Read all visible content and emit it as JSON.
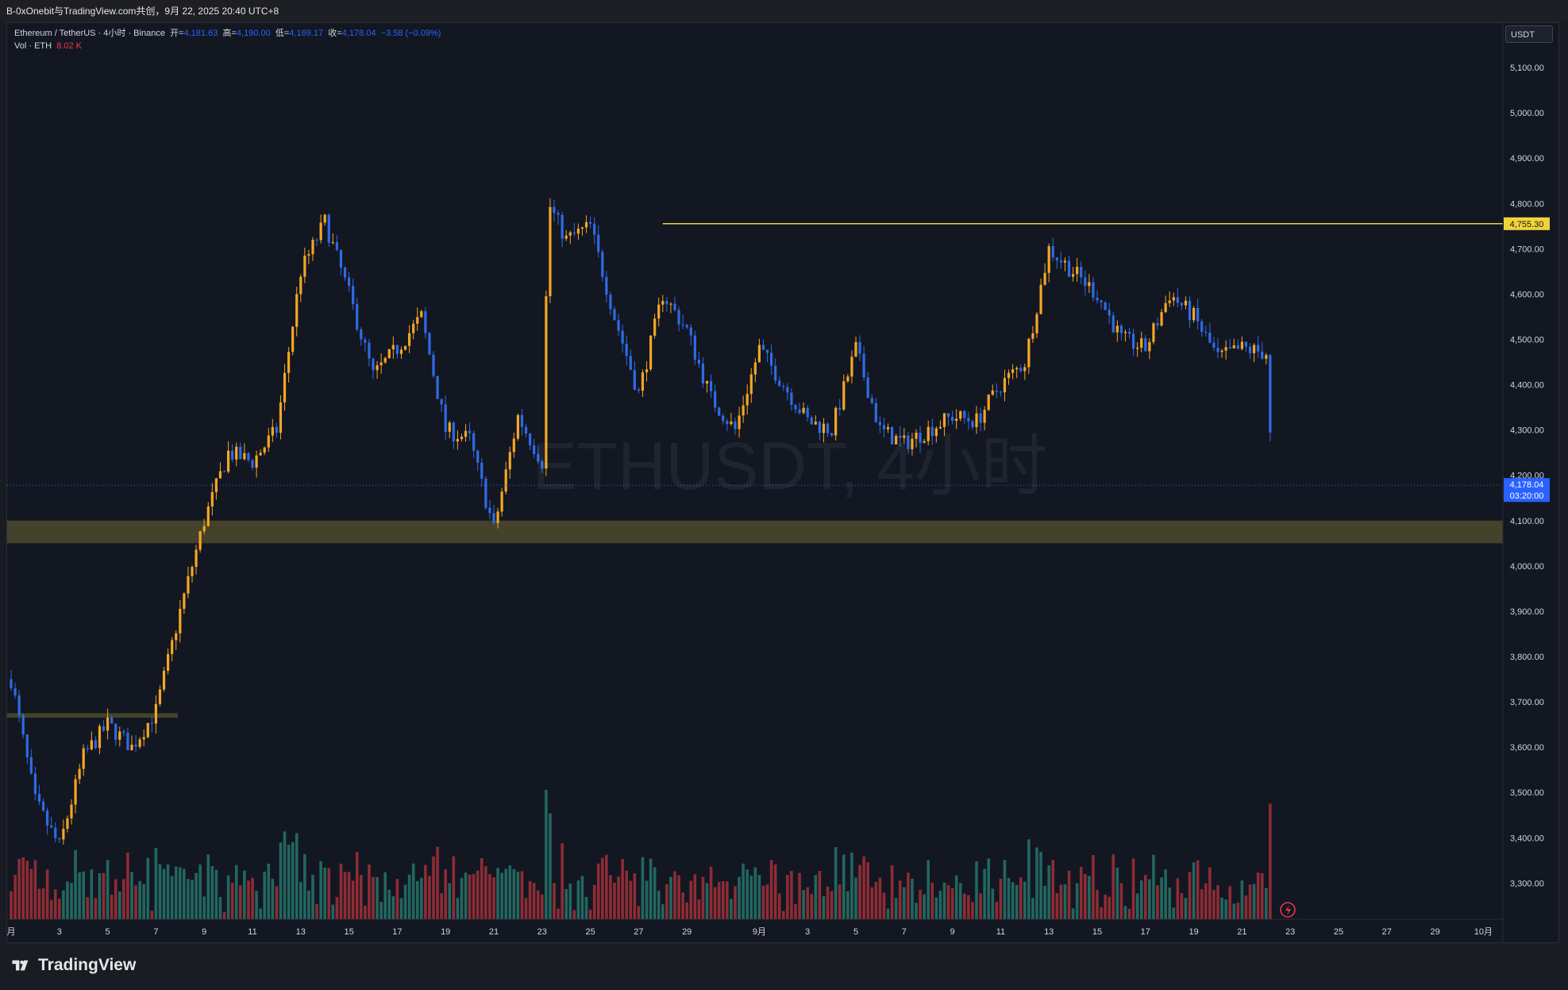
{
  "header": {
    "title": "B-0xOnebit与TradingView.com共创，9月 22, 2025 20:40 UTC+8"
  },
  "legend": {
    "symbol": "Ethereum / TetherUS · 4小时 · Binance",
    "open_label": "开=",
    "open_value": "4,181.63",
    "high_label": "高=",
    "high_value": "4,190.00",
    "low_label": "低=",
    "low_value": "4,169.17",
    "close_label": "收=",
    "close_value": "4,178.04",
    "change": "−3.58 (−0.09%)",
    "vol_label": "Vol · ETH",
    "vol_value": "8.02 K"
  },
  "currency_button": "USDT",
  "watermark": "ETHUSDT, 4小时",
  "brand": "TradingView",
  "colors": {
    "bg": "#131722",
    "up": "#f5a623",
    "down": "#2e6be6",
    "vol_up": "#22675f",
    "vol_down": "#8e2c35",
    "resistance": "#f0d43a",
    "zone": "#4d4a2c",
    "current_price": "#2962ff"
  },
  "chart_data": {
    "type": "candlestick",
    "title": "Ethereum / TetherUS · 4小时 · Binance",
    "interval": "4h",
    "y_axis": {
      "position": "right",
      "ylim": [
        3220,
        5200
      ],
      "ticks": [
        3300,
        3400,
        3500,
        3600,
        3700,
        3800,
        3900,
        4000,
        4100,
        4200,
        4300,
        4400,
        4500,
        4600,
        4700,
        4800,
        4900,
        5000,
        5100
      ],
      "tick_labels": [
        "3,300.00",
        "3,400.00",
        "3,500.00",
        "3,600.00",
        "3,700.00",
        "3,800.00",
        "3,900.00",
        "4,000.00",
        "4,100.00",
        "4,200.00",
        "4,300.00",
        "4,400.00",
        "4,500.00",
        "4,600.00",
        "4,700.00",
        "4,800.00",
        "4,900.00",
        "5,000.00",
        "5,100.00"
      ]
    },
    "x_axis": {
      "tick_labels": [
        "月",
        "3",
        "5",
        "7",
        "9",
        "11",
        "13",
        "15",
        "17",
        "19",
        "21",
        "23",
        "25",
        "27",
        "29",
        "9月",
        "3",
        "5",
        "7",
        "9",
        "11",
        "13",
        "15",
        "17",
        "19",
        "21",
        "23",
        "25",
        "27",
        "29",
        "10月"
      ]
    },
    "price_path": [
      {
        "date": "2025-08-01",
        "price": 3750
      },
      {
        "date": "2025-08-02",
        "price": 3480
      },
      {
        "date": "2025-08-03",
        "price": 3380
      },
      {
        "date": "2025-08-04",
        "price": 3580
      },
      {
        "date": "2025-08-05",
        "price": 3650
      },
      {
        "date": "2025-08-06",
        "price": 3600
      },
      {
        "date": "2025-08-07",
        "price": 3680
      },
      {
        "date": "2025-08-08",
        "price": 3900
      },
      {
        "date": "2025-08-09",
        "price": 4100
      },
      {
        "date": "2025-08-10",
        "price": 4250
      },
      {
        "date": "2025-08-11",
        "price": 4230
      },
      {
        "date": "2025-08-12",
        "price": 4300
      },
      {
        "date": "2025-08-13",
        "price": 4650
      },
      {
        "date": "2025-08-14",
        "price": 4760
      },
      {
        "date": "2025-08-15",
        "price": 4600
      },
      {
        "date": "2025-08-16",
        "price": 4420
      },
      {
        "date": "2025-08-17",
        "price": 4480
      },
      {
        "date": "2025-08-18",
        "price": 4550
      },
      {
        "date": "2025-08-19",
        "price": 4300
      },
      {
        "date": "2025-08-20",
        "price": 4280
      },
      {
        "date": "2025-08-21",
        "price": 4080
      },
      {
        "date": "2025-08-22",
        "price": 4330
      },
      {
        "date": "2025-08-23",
        "price": 4230
      },
      {
        "date": "2025-08-23",
        "price": 4800
      },
      {
        "date": "2025-08-24",
        "price": 4720
      },
      {
        "date": "2025-08-25",
        "price": 4750
      },
      {
        "date": "2025-08-26",
        "price": 4550
      },
      {
        "date": "2025-08-27",
        "price": 4380
      },
      {
        "date": "2025-08-28",
        "price": 4600
      },
      {
        "date": "2025-08-29",
        "price": 4520
      },
      {
        "date": "2025-08-30",
        "price": 4370
      },
      {
        "date": "2025-08-31",
        "price": 4300
      },
      {
        "date": "2025-09-01",
        "price": 4480
      },
      {
        "date": "2025-09-02",
        "price": 4400
      },
      {
        "date": "2025-09-03",
        "price": 4320
      },
      {
        "date": "2025-09-04",
        "price": 4300
      },
      {
        "date": "2025-09-05",
        "price": 4480
      },
      {
        "date": "2025-09-06",
        "price": 4300
      },
      {
        "date": "2025-09-07",
        "price": 4270
      },
      {
        "date": "2025-09-08",
        "price": 4300
      },
      {
        "date": "2025-09-09",
        "price": 4330
      },
      {
        "date": "2025-09-10",
        "price": 4320
      },
      {
        "date": "2025-09-11",
        "price": 4400
      },
      {
        "date": "2025-09-12",
        "price": 4450
      },
      {
        "date": "2025-09-13",
        "price": 4700
      },
      {
        "date": "2025-09-14",
        "price": 4650
      },
      {
        "date": "2025-09-15",
        "price": 4600
      },
      {
        "date": "2025-09-16",
        "price": 4500
      },
      {
        "date": "2025-09-17",
        "price": 4480
      },
      {
        "date": "2025-09-18",
        "price": 4600
      },
      {
        "date": "2025-09-19",
        "price": 4550
      },
      {
        "date": "2025-09-20",
        "price": 4460
      },
      {
        "date": "2025-09-21",
        "price": 4480
      },
      {
        "date": "2025-09-22",
        "price": 4470
      },
      {
        "date": "2025-09-22",
        "price": 4180
      }
    ],
    "resistance_line": {
      "price": 4755.3,
      "label": "4,755.30",
      "from_date": "2025-08-28"
    },
    "support_zone": {
      "low": 4050,
      "high": 4100
    },
    "left_zone": {
      "low": 3665,
      "high": 3675
    },
    "current_price": {
      "price": 4178.04,
      "label": "4,178.04",
      "countdown": "03:20:00"
    },
    "legend": "top-left",
    "grid": false
  }
}
